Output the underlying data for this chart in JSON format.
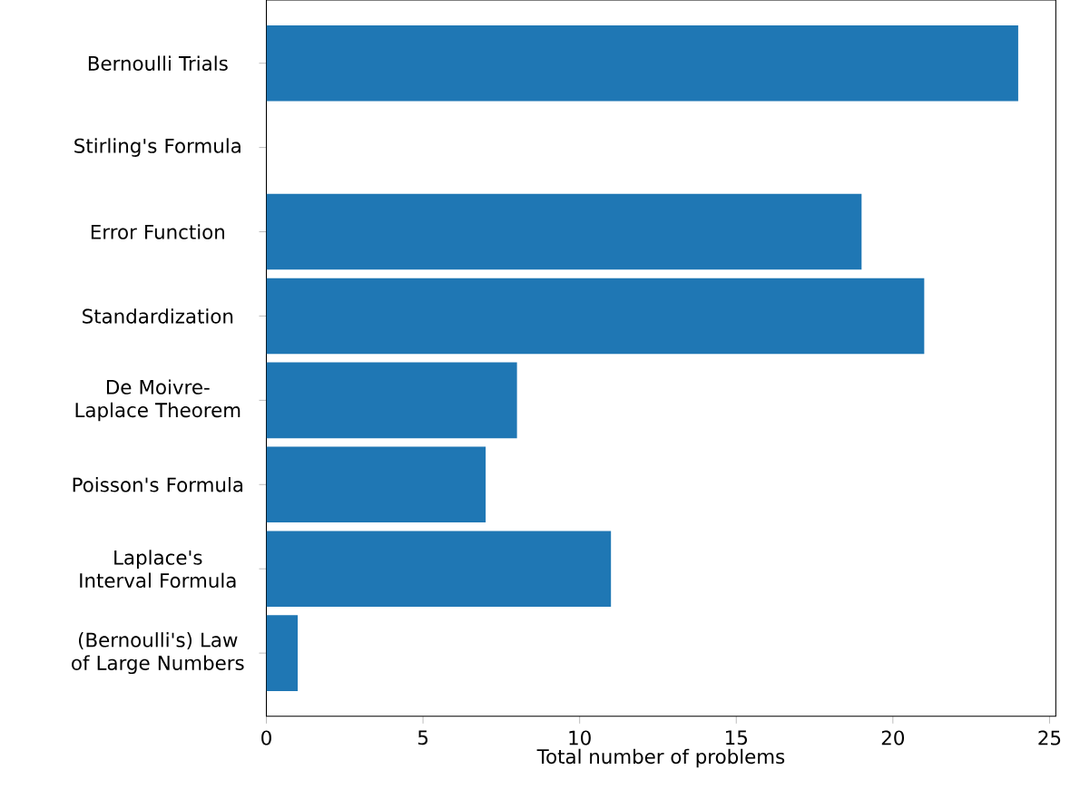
{
  "chart_data": {
    "type": "bar",
    "orientation": "horizontal",
    "xlabel": "Total number of problems",
    "categories": [
      "Bernoulli Trials",
      "Stirling's Formula",
      "Error Function",
      "Standardization",
      "De Moivre-Laplace Theorem",
      "Poisson's Formula",
      "Laplace's Interval Formula",
      "(Bernoulli's) Law of Large Numbers"
    ],
    "values": [
      24,
      0,
      19,
      21,
      8,
      7,
      11,
      1
    ],
    "color": "#1f77b4",
    "xlim": [
      0,
      25.2
    ],
    "xticks": [
      0,
      5,
      10,
      15,
      20,
      25
    ]
  }
}
